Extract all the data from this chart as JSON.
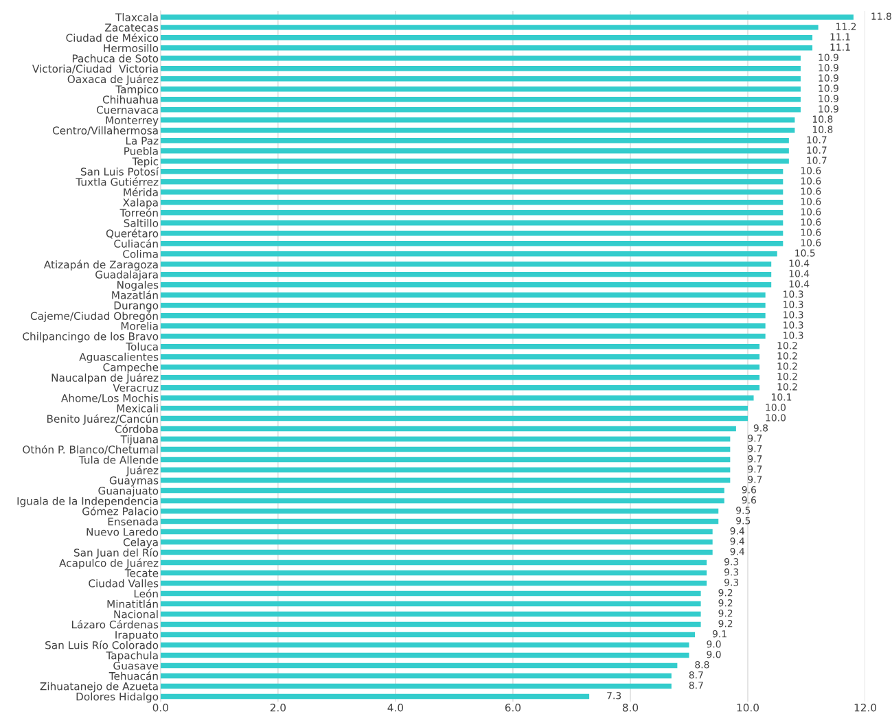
{
  "chart_data": {
    "type": "bar",
    "orientation": "horizontal",
    "categories": [
      "Tlaxcala",
      "Zacatecas",
      "Ciudad de México",
      "Hermosillo",
      "Pachuca de Soto",
      "Victoria/Ciudad  Victoria",
      "Oaxaca de Juárez",
      "Tampico",
      "Chihuahua",
      "Cuernavaca",
      "Monterrey",
      "Centro/Villahermosa",
      "La Paz",
      "Puebla",
      "Tepic",
      "San Luis Potosí",
      "Tuxtla Gutiérrez",
      "Mérida",
      "Xalapa",
      "Torreón",
      "Saltillo",
      "Querétaro",
      "Culiacán",
      "Colima",
      "Atizapán de Zaragoza",
      "Guadalajara",
      "Nogales",
      "Mazatlán",
      "Durango",
      "Cajeme/Ciudad Obregón",
      "Morelia",
      "Chilpancingo de los Bravo",
      "Toluca",
      "Aguascalientes",
      "Campeche",
      "Naucalpan de Juárez",
      "Veracruz",
      "Ahome/Los Mochis",
      "Mexicali",
      "Benito Juárez/Cancún",
      "Córdoba",
      "Tijuana",
      "Othón P. Blanco/Chetumal",
      "Tula de Allende",
      "Juárez",
      "Guaymas",
      "Guanajuato",
      "Iguala de la Independencia",
      "Gómez Palacio",
      "Ensenada",
      "Nuevo Laredo",
      "Celaya",
      "San Juan del Río",
      "Acapulco de Juárez",
      "Tecate",
      "Ciudad Valles",
      "León",
      "Minatitlán",
      "Nacional",
      "Lázaro Cárdenas",
      "Irapuato",
      "San Luis Río Colorado",
      "Tapachula",
      "Guasave",
      "Tehuacán",
      "Zihuatanejo de Azueta",
      "Dolores Hidalgo"
    ],
    "values": [
      11.8,
      11.2,
      11.1,
      11.1,
      10.9,
      10.9,
      10.9,
      10.9,
      10.9,
      10.9,
      10.8,
      10.8,
      10.7,
      10.7,
      10.7,
      10.6,
      10.6,
      10.6,
      10.6,
      10.6,
      10.6,
      10.6,
      10.6,
      10.5,
      10.4,
      10.4,
      10.4,
      10.3,
      10.3,
      10.3,
      10.3,
      10.3,
      10.2,
      10.2,
      10.2,
      10.2,
      10.2,
      10.1,
      10.0,
      10.0,
      9.8,
      9.7,
      9.7,
      9.7,
      9.7,
      9.7,
      9.6,
      9.6,
      9.5,
      9.5,
      9.4,
      9.4,
      9.4,
      9.3,
      9.3,
      9.3,
      9.2,
      9.2,
      9.2,
      9.2,
      9.1,
      9.0,
      9.0,
      8.8,
      8.7,
      8.7,
      7.3
    ],
    "value_labels": [
      "11.8",
      "11.2",
      "11.1",
      "11.1",
      "10.9",
      "10.9",
      "10.9",
      "10.9",
      "10.9",
      "10.9",
      "10.8",
      "10.8",
      "10.7",
      "10.7",
      "10.7",
      "10.6",
      "10.6",
      "10.6",
      "10.6",
      "10.6",
      "10.6",
      "10.6",
      "10.6",
      "10.5",
      "10.4",
      "10.4",
      "10.4",
      "10.3",
      "10.3",
      "10.3",
      "10.3",
      "10.3",
      "10.2",
      "10.2",
      "10.2",
      "10.2",
      "10.2",
      "10.1",
      "10.0",
      "10.0",
      "9.8",
      "9.7",
      "9.7",
      "9.7",
      "9.7",
      "9.7",
      "9.6",
      "9.6",
      "9.5",
      "9.5",
      "9.4",
      "9.4",
      "9.4",
      "9.3",
      "9.3",
      "9.3",
      "9.2",
      "9.2",
      "9.2",
      "9.2",
      "9.1",
      "9.0",
      "9.0",
      "8.8",
      "8.7",
      "8.7",
      "7.3"
    ],
    "color": "#33cccc",
    "xlim": [
      0,
      12
    ],
    "xticks": [
      {
        "value": 0,
        "label": "0.0"
      },
      {
        "value": 2,
        "label": "2.0"
      },
      {
        "value": 4,
        "label": "4.0"
      },
      {
        "value": 6,
        "label": "6.0"
      },
      {
        "value": 8,
        "label": "8.0"
      },
      {
        "value": 10,
        "label": "10.0"
      },
      {
        "value": 12,
        "label": "12.0"
      }
    ],
    "grid": "x",
    "legend": false
  }
}
